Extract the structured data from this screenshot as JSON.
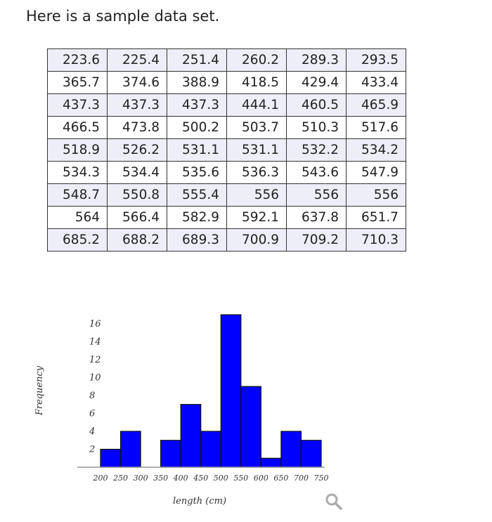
{
  "intro_text": "Here is a sample data set.",
  "table": {
    "rows": [
      [
        "223.6",
        "225.4",
        "251.4",
        "260.2",
        "289.3",
        "293.5"
      ],
      [
        "365.7",
        "374.6",
        "388.9",
        "418.5",
        "429.4",
        "433.4"
      ],
      [
        "437.3",
        "437.3",
        "437.3",
        "444.1",
        "460.5",
        "465.9"
      ],
      [
        "466.5",
        "473.8",
        "500.2",
        "503.7",
        "510.3",
        "517.6"
      ],
      [
        "518.9",
        "526.2",
        "531.1",
        "531.1",
        "532.2",
        "534.2"
      ],
      [
        "534.3",
        "534.4",
        "535.6",
        "536.3",
        "543.6",
        "547.9"
      ],
      [
        "548.7",
        "550.8",
        "555.4",
        "556",
        "556",
        "556"
      ],
      [
        "564",
        "566.4",
        "582.9",
        "592.1",
        "637.8",
        "651.7"
      ],
      [
        "685.2",
        "688.2",
        "689.3",
        "700.9",
        "709.2",
        "710.3"
      ]
    ]
  },
  "chart_data": {
    "type": "bar",
    "bin_edges": [
      200,
      250,
      300,
      350,
      400,
      450,
      500,
      550,
      600,
      650,
      700,
      750
    ],
    "values": [
      2,
      4,
      0,
      3,
      7,
      4,
      17,
      9,
      1,
      4,
      3
    ],
    "xlabel": "length (cm)",
    "ylabel": "Frequency",
    "x_ticks": [
      "200",
      "250",
      "300",
      "350",
      "400",
      "450",
      "500",
      "550",
      "600",
      "650",
      "700",
      "750"
    ],
    "y_ticks": [
      "2",
      "4",
      "6",
      "8",
      "10",
      "12",
      "14",
      "16"
    ],
    "xlim": [
      200,
      750
    ],
    "ylim": [
      0,
      17
    ],
    "bar_color": "#0000ff",
    "grid": false
  },
  "icons": {
    "zoom": "magnifier-icon"
  }
}
